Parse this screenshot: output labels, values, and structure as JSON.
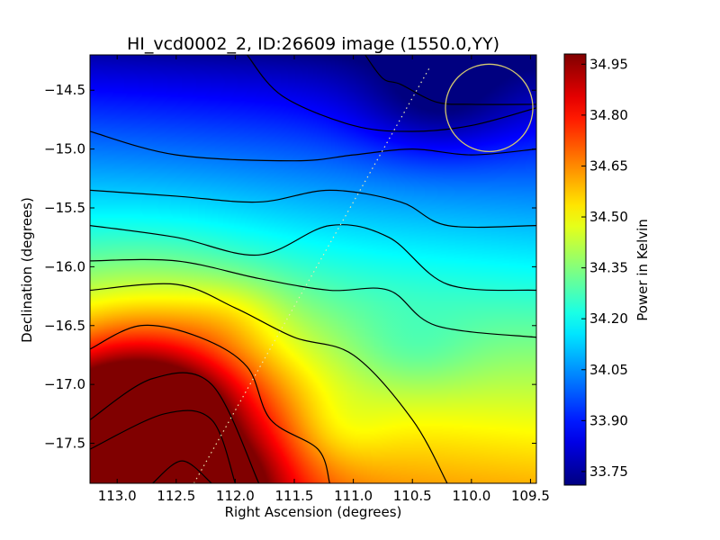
{
  "chart_data": {
    "type": "heatmap",
    "title": "HI_vcd0002_2, ID:26609 image (1550.0,YY)",
    "xlabel": "Right Ascension (degrees)",
    "ylabel": "Declination (degrees)",
    "colorbar_label": "Power in Kelvin",
    "colormap": "jet",
    "x_inverted": true,
    "xlim": [
      113.23,
      109.45
    ],
    "ylim": [
      -17.84,
      -14.2
    ],
    "clim": [
      33.71,
      34.98
    ],
    "x_ticks": [
      113.0,
      112.5,
      112.0,
      111.5,
      111.0,
      110.5,
      110.0,
      109.5
    ],
    "x_tick_labels": [
      "113.0",
      "112.5",
      "112.0",
      "111.5",
      "111.0",
      "110.5",
      "110.0",
      "109.5"
    ],
    "y_ticks": [
      -14.5,
      -15.0,
      -15.5,
      -16.0,
      -16.5,
      -17.0,
      -17.5
    ],
    "y_tick_labels": [
      "−14.5",
      "−15.0",
      "−15.5",
      "−16.0",
      "−16.5",
      "−17.0",
      "−17.5"
    ],
    "colorbar_ticks": [
      33.75,
      33.9,
      34.05,
      34.2,
      34.35,
      34.5,
      34.65,
      34.8,
      34.95
    ],
    "colorbar_tick_labels": [
      "33.75",
      "33.90",
      "34.05",
      "34.20",
      "34.35",
      "34.50",
      "34.65",
      "34.80",
      "34.95"
    ],
    "circle": {
      "center": [
        109.85,
        -14.65
      ],
      "radius_deg": 0.37,
      "color": "#d4c870"
    },
    "dotted_line": {
      "from": [
        112.35,
        -17.84
      ],
      "to": [
        110.35,
        -14.3
      ],
      "color": "#e8e8b0"
    },
    "contours": [
      {
        "points": [
          [
            111.9,
            -14.2
          ],
          [
            111.6,
            -14.55
          ],
          [
            111.0,
            -14.8
          ],
          [
            110.5,
            -14.85
          ],
          [
            110.0,
            -14.8
          ],
          [
            109.45,
            -14.65
          ]
        ]
      },
      {
        "points": [
          [
            110.9,
            -14.2
          ],
          [
            110.75,
            -14.4
          ],
          [
            110.6,
            -14.45
          ],
          [
            110.3,
            -14.6
          ],
          [
            110.0,
            -14.62
          ],
          [
            109.45,
            -14.62
          ]
        ]
      },
      {
        "points": [
          [
            113.23,
            -14.85
          ],
          [
            112.5,
            -15.05
          ],
          [
            111.5,
            -15.1
          ],
          [
            111.0,
            -15.05
          ],
          [
            110.5,
            -15.0
          ],
          [
            110.0,
            -15.05
          ],
          [
            109.45,
            -15.0
          ]
        ]
      },
      {
        "points": [
          [
            113.23,
            -15.35
          ],
          [
            112.5,
            -15.4
          ],
          [
            111.8,
            -15.45
          ],
          [
            111.2,
            -15.35
          ],
          [
            110.6,
            -15.45
          ],
          [
            110.2,
            -15.65
          ],
          [
            109.45,
            -15.65
          ]
        ]
      },
      {
        "points": [
          [
            113.23,
            -15.65
          ],
          [
            112.5,
            -15.75
          ],
          [
            111.8,
            -15.9
          ],
          [
            111.2,
            -15.65
          ],
          [
            110.7,
            -15.75
          ],
          [
            110.2,
            -16.15
          ],
          [
            109.45,
            -16.2
          ]
        ]
      },
      {
        "points": [
          [
            113.23,
            -15.95
          ],
          [
            112.5,
            -15.95
          ],
          [
            111.8,
            -16.1
          ],
          [
            111.2,
            -16.2
          ],
          [
            110.7,
            -16.2
          ],
          [
            110.3,
            -16.5
          ],
          [
            109.45,
            -16.6
          ]
        ]
      },
      {
        "points": [
          [
            113.23,
            -16.2
          ],
          [
            112.5,
            -16.15
          ],
          [
            112.0,
            -16.35
          ],
          [
            111.5,
            -16.6
          ],
          [
            111.0,
            -16.75
          ],
          [
            110.5,
            -17.3
          ],
          [
            110.2,
            -17.85
          ]
        ]
      },
      {
        "points": [
          [
            113.23,
            -16.7
          ],
          [
            112.8,
            -16.5
          ],
          [
            112.3,
            -16.6
          ],
          [
            111.9,
            -16.85
          ],
          [
            111.7,
            -17.3
          ],
          [
            111.3,
            -17.55
          ],
          [
            111.2,
            -17.84
          ]
        ]
      },
      {
        "points": [
          [
            113.23,
            -17.3
          ],
          [
            112.7,
            -16.95
          ],
          [
            112.2,
            -17.0
          ],
          [
            111.8,
            -17.84
          ]
        ]
      },
      {
        "points": [
          [
            113.23,
            -17.55
          ],
          [
            112.6,
            -17.25
          ],
          [
            112.2,
            -17.3
          ],
          [
            112.0,
            -17.84
          ]
        ]
      },
      {
        "points": [
          [
            112.7,
            -17.84
          ],
          [
            112.45,
            -17.65
          ],
          [
            112.2,
            -17.84
          ]
        ]
      }
    ]
  }
}
